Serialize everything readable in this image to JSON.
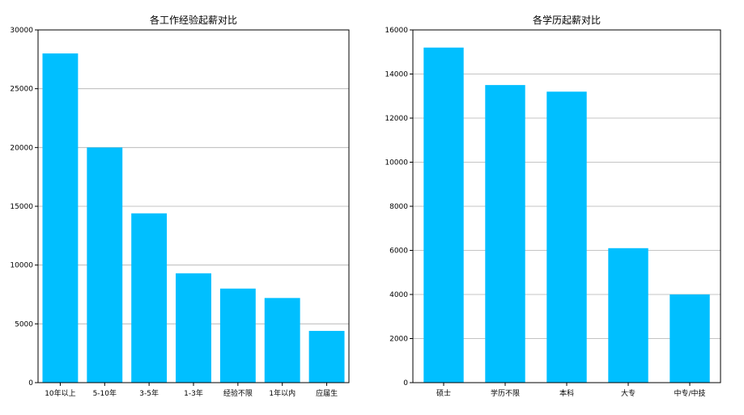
{
  "chart_data": [
    {
      "type": "bar",
      "title": "各工作经验起薪对比",
      "categories": [
        "10年以上",
        "5-10年",
        "3-5年",
        "1-3年",
        "经验不限",
        "1年以内",
        "应届生"
      ],
      "values": [
        28000,
        20000,
        14400,
        9300,
        8000,
        7200,
        4400
      ],
      "ylim": [
        0,
        30000
      ],
      "yticks": [
        0,
        5000,
        10000,
        15000,
        20000,
        25000,
        30000
      ],
      "grid": "horizontal",
      "bar_color": "#00bfff"
    },
    {
      "type": "bar",
      "title": "各学历起薪对比",
      "categories": [
        "硕士",
        "学历不限",
        "本科",
        "大专",
        "中专/中技"
      ],
      "values": [
        15200,
        13500,
        13200,
        6100,
        4000
      ],
      "ylim": [
        0,
        16000
      ],
      "yticks": [
        0,
        2000,
        4000,
        6000,
        8000,
        10000,
        12000,
        14000,
        16000
      ],
      "grid": "horizontal",
      "bar_color": "#00bfff"
    }
  ]
}
